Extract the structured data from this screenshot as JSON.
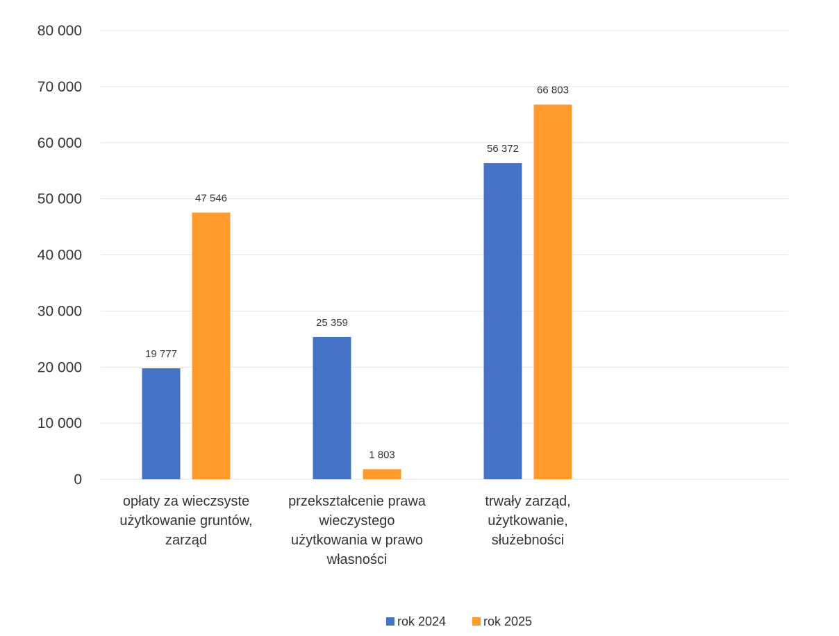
{
  "chart_data": {
    "type": "bar",
    "title": "",
    "xlabel": "",
    "ylabel": "",
    "ylim": [
      0,
      80000
    ],
    "yticks": [
      0,
      10000,
      20000,
      30000,
      40000,
      50000,
      60000,
      70000,
      80000
    ],
    "ytick_labels": [
      "0",
      "10 000",
      "20 000",
      "30 000",
      "40 000",
      "50 000",
      "60 000",
      "70 000",
      "80 000"
    ],
    "grid": true,
    "legend_position": "bottom",
    "categories": [
      [
        "opłaty za wieczsyste",
        "użytkowanie gruntów,",
        "zarząd"
      ],
      [
        "przekształcenie prawa",
        "wieczystego",
        "użytkowania w prawo",
        "własności"
      ],
      [
        "trwały zarząd,",
        "użytkowanie,",
        "służebności"
      ]
    ],
    "series": [
      {
        "name": "rok 2024",
        "color": "#4472C4",
        "values": [
          19777,
          25359,
          56372
        ],
        "labels": [
          "19 777",
          "25 359",
          "56 372"
        ]
      },
      {
        "name": "rok 2025",
        "color": "#FF9A2E",
        "values": [
          47546,
          1803,
          66803
        ],
        "labels": [
          "47 546",
          "1 803",
          "66 803"
        ]
      }
    ]
  }
}
